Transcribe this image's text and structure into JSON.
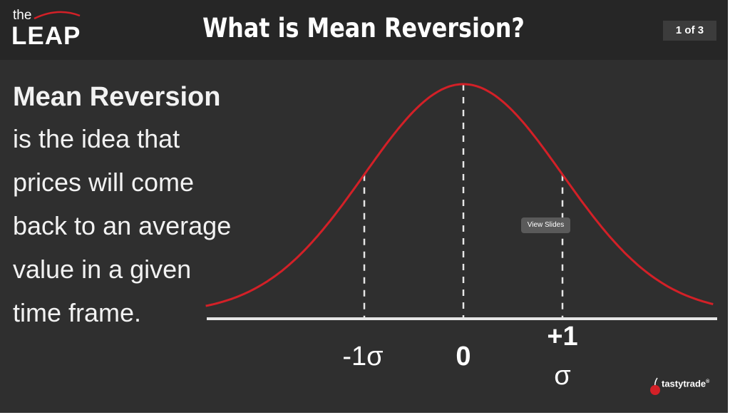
{
  "header": {
    "logo_small": "the",
    "logo_large": "LEAP",
    "title": "What is Mean Reversion?",
    "page_indicator": "1 of 3"
  },
  "description": {
    "heading": "Mean Reversion",
    "lines": [
      "is the idea that",
      "prices will come",
      "back to an average",
      "value in a given",
      "time frame."
    ]
  },
  "overlay": {
    "tooltip": "View Slides"
  },
  "branding": {
    "name": "tastytrade",
    "mark": "®"
  },
  "colors": {
    "header_bg": "#262626",
    "slide_bg": "#2f2f2f",
    "curve": "#d32027",
    "axis": "#e6e6e6",
    "text": "#ffffff"
  },
  "chart_data": {
    "type": "line",
    "curve": "normal distribution",
    "x_ticks": [
      {
        "label": "-1σ",
        "value": -1
      },
      {
        "label": "0",
        "value": 0
      },
      {
        "label": "+1\nσ",
        "value": 1
      }
    ],
    "reference_lines": [
      -1,
      0,
      1
    ],
    "xlim": [
      -2.5,
      2.5
    ],
    "title": "",
    "xlabel": "",
    "ylabel": ""
  }
}
